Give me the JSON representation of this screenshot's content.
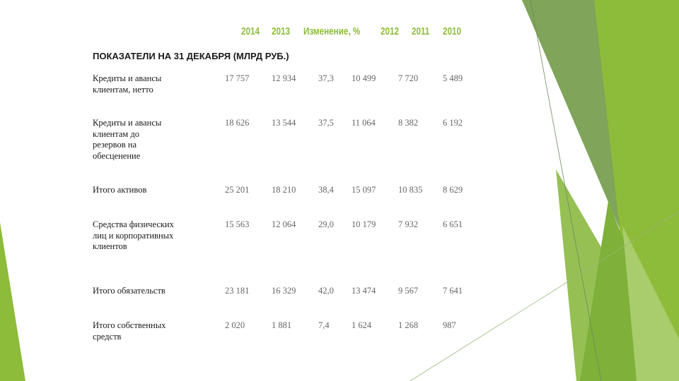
{
  "header": {
    "columns": [
      "2014",
      "2013",
      "Изменение, %",
      "2012",
      "2011",
      "2010"
    ],
    "color": "#8dbb3a"
  },
  "section_title": "ПОКАЗАТЕЛИ НА 31 ДЕКАБРЯ (МЛРД РУБ.)",
  "rows": [
    {
      "label": "Кредиты и авансы клиентам, нетто",
      "values": [
        "17 757",
        "12 934",
        "37,3",
        "10 499",
        "7 720",
        "5 489"
      ]
    },
    {
      "label": "Кредиты и авансы клиентам до резервов на обесценение",
      "values": [
        "18 626",
        "13 544",
        "37,5",
        "11 064",
        "8 382",
        "6 192"
      ]
    },
    {
      "label": "Итого активов",
      "values": [
        "25 201",
        "18 210",
        "38,4",
        "15 097",
        "10 835",
        "8 629"
      ]
    },
    {
      "label": "Средства физических лиц и корпоративных клиентов",
      "values": [
        "15 563",
        "12 064",
        "29,0",
        "10 179",
        "7 932",
        "6 651"
      ]
    },
    {
      "label": "Итого обязательств",
      "values": [
        "23 181",
        "16 329",
        "42,0",
        "13 474",
        "9 567",
        "7 641"
      ]
    },
    {
      "label": "Итого собственных средств",
      "values": [
        "2 020",
        "1 881",
        "7,4",
        "1 624",
        "1 268",
        "987"
      ]
    }
  ],
  "colors": {
    "green_light": "#9cc35c",
    "green_mid": "#7fb03a",
    "green_dark": "#6e9a3a",
    "green_pale": "#dfecc8"
  }
}
